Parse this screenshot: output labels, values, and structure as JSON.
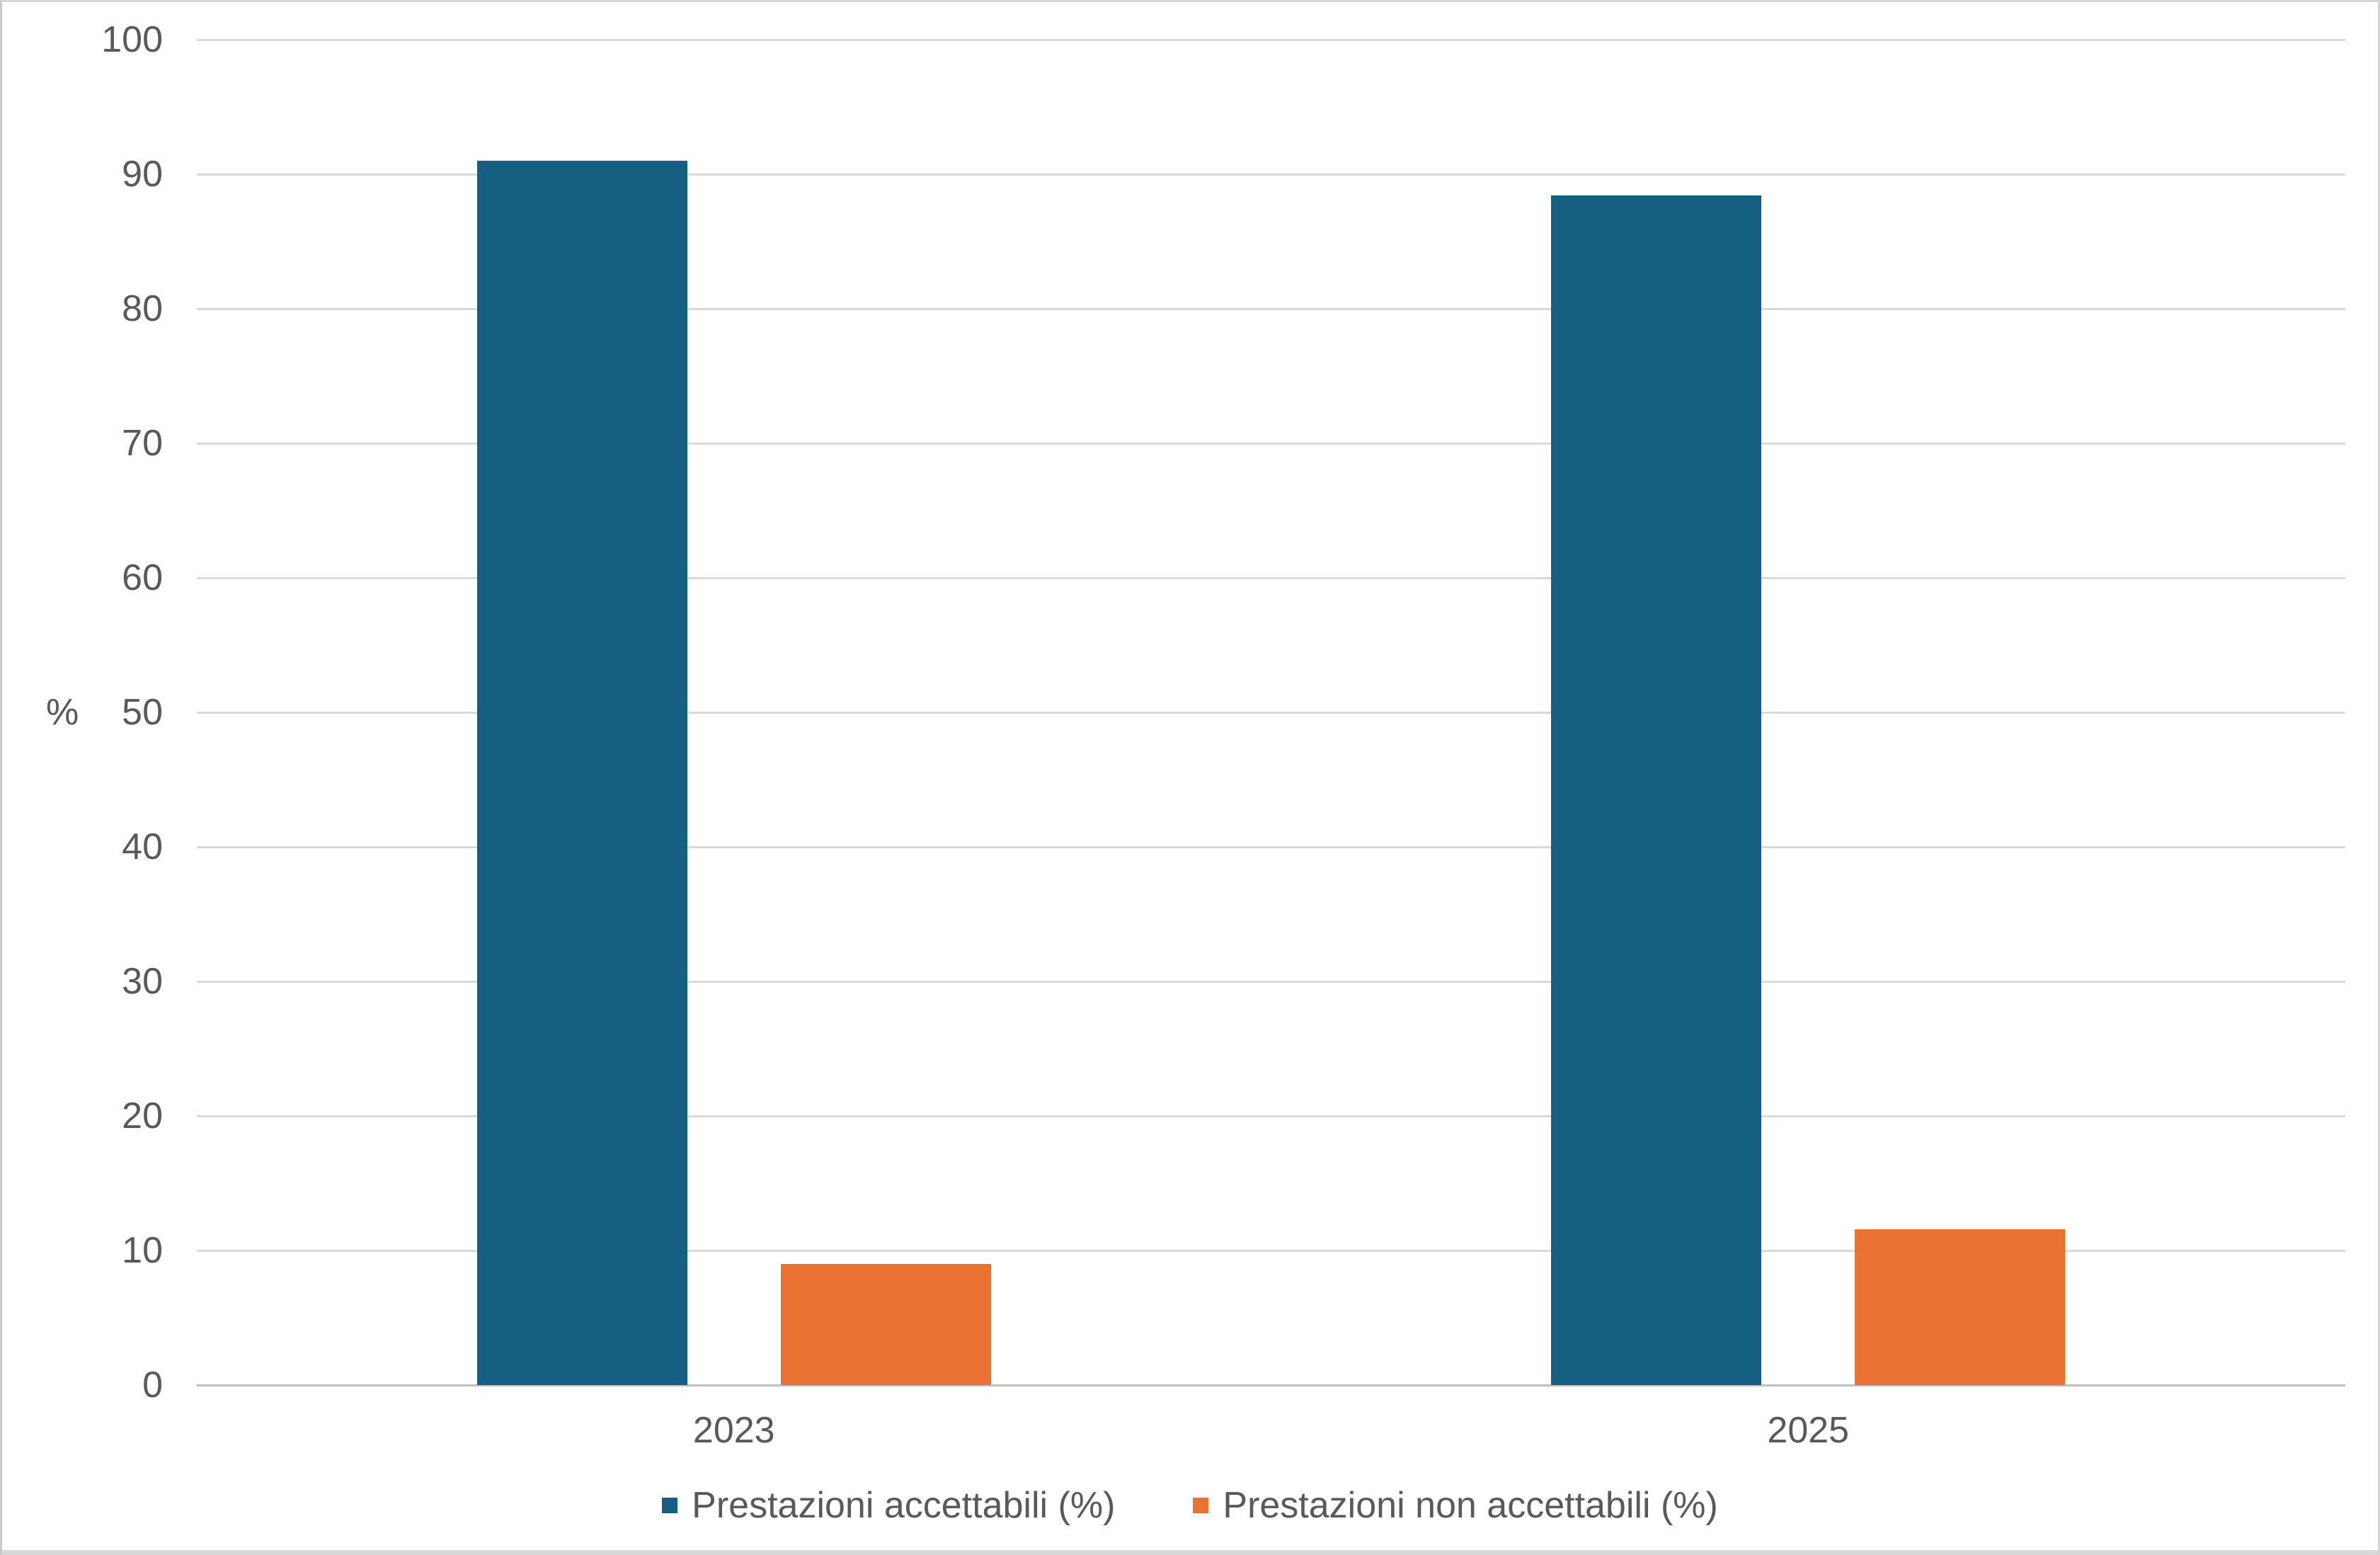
{
  "chart_data": {
    "type": "bar",
    "categories": [
      "2023",
      "2025"
    ],
    "series": [
      {
        "name": "Prestazioni accettabili (%)",
        "color": "#156082",
        "values": [
          91,
          88.4
        ]
      },
      {
        "name": "Prestazioni non accettabili (%)",
        "color": "#E97132",
        "values": [
          9,
          11.6
        ]
      }
    ],
    "title": "",
    "xlabel": "",
    "ylabel": "%",
    "ylim": [
      0,
      100
    ],
    "yticks": [
      0,
      10,
      20,
      30,
      40,
      50,
      60,
      70,
      80,
      90,
      100
    ],
    "grid": true,
    "legend_position": "bottom"
  },
  "colors": {
    "gridline": "#D9D9D9",
    "axis_line": "#BFBFBF",
    "text": "#595959",
    "background": "#FFFFFF"
  }
}
